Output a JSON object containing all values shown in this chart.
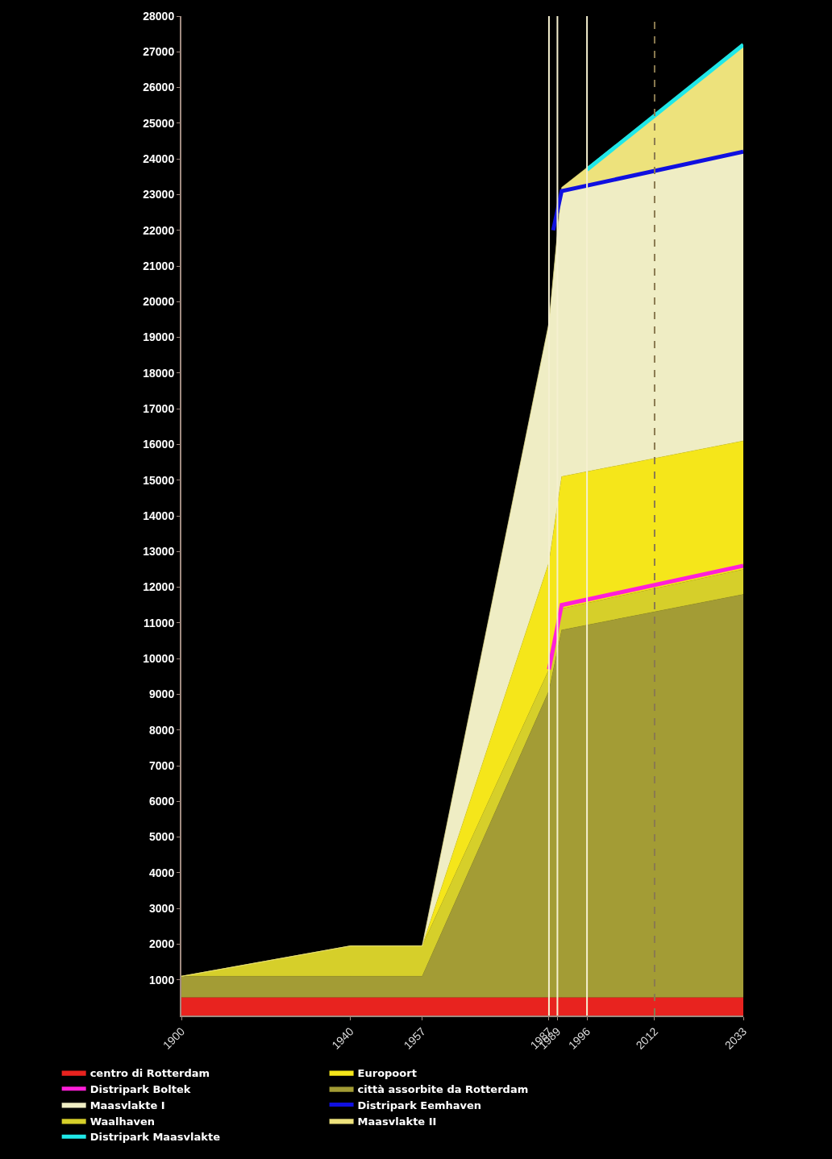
{
  "chart_data": {
    "type": "area",
    "stacked": true,
    "x": [
      1900,
      1940,
      1957,
      1987,
      1990,
      2033
    ],
    "series": [
      {
        "name": "centro di Rotterdam",
        "color": "#e8231f",
        "values": [
          500,
          500,
          500,
          500,
          500,
          500
        ]
      },
      {
        "name": "città assorbite da Rotterdam",
        "color": "#a39c35",
        "values": [
          600,
          600,
          600,
          8600,
          10300,
          11300
        ]
      },
      {
        "name": "Waalhaven",
        "color": "#d6cf2a",
        "values": [
          0,
          850,
          850,
          600,
          600,
          700
        ]
      },
      {
        "name": "Europoort",
        "color": "#f5e61a",
        "values": [
          0,
          0,
          0,
          3000,
          3700,
          3600
        ]
      },
      {
        "name": "Maasvlakte I",
        "color": "#efedc4",
        "values": [
          0,
          0,
          0,
          6700,
          8000,
          8100
        ]
      },
      {
        "name": "Maasvlakte II",
        "color": "#ede27c",
        "values": [
          0,
          0,
          0,
          0,
          100,
          3000
        ]
      },
      {
        "name": "Distripark Boltek",
        "color": "#ff1fd8",
        "type": "line",
        "x": [
          1987,
          1990,
          2033
        ],
        "values": [
          9700,
          11500,
          12600
        ]
      },
      {
        "name": "Distripark Eemhaven",
        "color": "#1010e0",
        "type": "line",
        "x": [
          1988,
          1990,
          2033
        ],
        "values": [
          22000,
          23100,
          24200
        ]
      },
      {
        "name": "Distripark Maasvlakte",
        "color": "#20e8e8",
        "type": "line",
        "x": [
          1996,
          2033
        ],
        "values": [
          23700,
          27200
        ]
      }
    ],
    "xlim": [
      1900,
      2033
    ],
    "xticks": [
      1900,
      1940,
      1957,
      1987,
      1989,
      1996,
      2012,
      2033
    ],
    "ylim": [
      0,
      28000
    ],
    "yticks": [
      1000,
      2000,
      3000,
      4000,
      5000,
      6000,
      7000,
      8000,
      9000,
      10000,
      11000,
      12000,
      13000,
      14000,
      15000,
      16000,
      17000,
      18000,
      19000,
      20000,
      21000,
      22000,
      23000,
      24000,
      25000,
      26000,
      27000,
      28000
    ],
    "ref_lines": [
      {
        "axis": "x",
        "value": 1987,
        "color": "#f5f0d0",
        "line_style": "solid"
      },
      {
        "axis": "x",
        "value": 1989,
        "color": "#f5f0d0",
        "line_style": "solid"
      },
      {
        "axis": "x",
        "value": 1996,
        "color": "#f5f0d0",
        "line_style": "solid"
      },
      {
        "axis": "x",
        "value": 2012,
        "color": "#8a7a50",
        "line_style": "dashed"
      }
    ],
    "grid": false,
    "legend": "bottom",
    "marker": "none",
    "line_style": "solid"
  }
}
